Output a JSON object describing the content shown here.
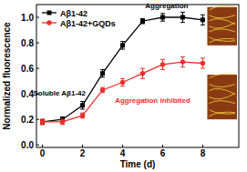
{
  "chart_data": {
    "type": "line",
    "x_label": "Time (d)",
    "y_label": "Normalized fluorescence",
    "x": [
      0,
      1,
      2,
      3,
      4,
      5,
      6,
      7,
      8
    ],
    "series": [
      {
        "name": "Aβ1-42",
        "color": "#000000",
        "marker": "square",
        "line_style": "solid",
        "values": [
          0.18,
          0.2,
          0.31,
          0.56,
          0.78,
          0.97,
          1.0,
          1.0,
          0.98
        ],
        "errors": [
          0.02,
          0.02,
          0.03,
          0.03,
          0.03,
          0.02,
          0.03,
          0.04,
          0.04
        ]
      },
      {
        "name": "Aβ1-42+GQDs",
        "color": "#e8302a",
        "marker": "circle",
        "line_style": "solid",
        "values": [
          0.18,
          0.18,
          0.23,
          0.43,
          0.49,
          0.56,
          0.63,
          0.65,
          0.64
        ],
        "errors": [
          0.02,
          0.02,
          0.02,
          0.02,
          0.03,
          0.04,
          0.04,
          0.04,
          0.04
        ]
      }
    ],
    "xlim": [
      -0.3,
      9.8
    ],
    "xticks": [
      0,
      2,
      4,
      6,
      8
    ],
    "ylim": [
      -0.02,
      1.1
    ],
    "yticks": [
      {
        "value": 0,
        "label": "0.0"
      },
      {
        "value": 0.2,
        "label": "0.2"
      },
      {
        "value": 0.4,
        "label": "0.4"
      },
      {
        "value": 0.6,
        "label": "0.6"
      },
      {
        "value": 0.8,
        "label": "0.8"
      },
      {
        "value": 1.0,
        "label": "1.0"
      }
    ],
    "annotations": [
      "Soluble Aβ1-42",
      "Aggregation",
      "Aggregation inhibited"
    ],
    "legend": "upper left",
    "grid": false
  }
}
